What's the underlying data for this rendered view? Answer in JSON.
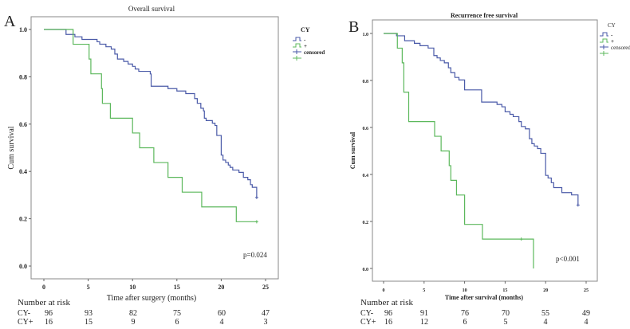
{
  "chart_data": [
    {
      "type": "line",
      "panel_label": "A",
      "title": "Overall survival",
      "xlabel": "Time after surgery (months)",
      "ylabel": "Cum survival",
      "xlim": [
        0,
        25
      ],
      "ylim": [
        0,
        1
      ],
      "xticks": [
        "0",
        "5",
        "10",
        "15",
        "20",
        "25"
      ],
      "yticks": [
        "0.0",
        "0.2",
        "0.4",
        "0.6",
        "0.8",
        "1.0"
      ],
      "legend": {
        "title": "CY",
        "entries": [
          "-",
          "+",
          "censored"
        ],
        "placement": "right"
      },
      "annotation": "p=0.024",
      "series": [
        {
          "name": "-",
          "color": "#4a5aa8",
          "steps": [
            [
              0,
              1
            ],
            [
              2.5,
              0.979
            ],
            [
              3.5,
              0.969
            ],
            [
              4.3,
              0.958
            ],
            [
              6,
              0.948
            ],
            [
              6.3,
              0.938
            ],
            [
              7,
              0.927
            ],
            [
              7.6,
              0.917
            ],
            [
              8,
              0.896
            ],
            [
              8.3,
              0.875
            ],
            [
              9,
              0.865
            ],
            [
              9.5,
              0.854
            ],
            [
              10,
              0.844
            ],
            [
              10.3,
              0.833
            ],
            [
              10.7,
              0.823
            ],
            [
              12,
              0.812
            ],
            [
              12.1,
              0.76
            ],
            [
              14,
              0.75
            ],
            [
              15,
              0.74
            ],
            [
              16,
              0.729
            ],
            [
              17,
              0.708
            ],
            [
              17.3,
              0.688
            ],
            [
              17.7,
              0.667
            ],
            [
              18,
              0.656
            ],
            [
              18.1,
              0.625
            ],
            [
              18.3,
              0.615
            ],
            [
              19,
              0.604
            ],
            [
              19.3,
              0.594
            ],
            [
              19.5,
              0.552
            ],
            [
              20,
              0.469
            ],
            [
              20.2,
              0.448
            ],
            [
              20.5,
              0.438
            ],
            [
              20.8,
              0.427
            ],
            [
              21,
              0.417
            ],
            [
              21.3,
              0.406
            ],
            [
              22,
              0.396
            ],
            [
              22.5,
              0.375
            ],
            [
              23,
              0.365
            ],
            [
              23.3,
              0.344
            ],
            [
              23.5,
              0.333
            ],
            [
              24,
              0.29
            ]
          ],
          "censored": [
            [
              24,
              0.29
            ]
          ]
        },
        {
          "name": "+",
          "color": "#5cb85c",
          "steps": [
            [
              0,
              1
            ],
            [
              3.3,
              0.9375
            ],
            [
              5.1,
              0.875
            ],
            [
              5.3,
              0.8125
            ],
            [
              6.5,
              0.75
            ],
            [
              6.6,
              0.6875
            ],
            [
              7.5,
              0.625
            ],
            [
              10,
              0.5625
            ],
            [
              10.8,
              0.5
            ],
            [
              12.4,
              0.4375
            ],
            [
              14,
              0.375
            ],
            [
              15.6,
              0.3125
            ],
            [
              17.8,
              0.25
            ],
            [
              21.7,
              0.1875
            ],
            [
              24,
              0.1875
            ]
          ],
          "censored": [
            [
              24,
              0.1875
            ]
          ]
        }
      ],
      "risk_table": {
        "title": "Number at risk",
        "rows": [
          {
            "label": "CY-",
            "values": [
              "96",
              "93",
              "82",
              "75",
              "60",
              "47"
            ]
          },
          {
            "label": "CY+",
            "values": [
              "16",
              "15",
              "9",
              "6",
              "4",
              "3"
            ]
          }
        ]
      }
    },
    {
      "type": "line",
      "panel_label": "B",
      "title": "Recurrence free survival",
      "xlabel": "Time after survival (months)",
      "ylabel": "Cum survival",
      "xlim": [
        0,
        25
      ],
      "ylim": [
        0,
        1
      ],
      "xticks": [
        "0",
        "5",
        "10",
        "15",
        "20",
        "25"
      ],
      "yticks": [
        "0.0",
        "0.2",
        "0.4",
        "0.6",
        "0.8",
        "1.0"
      ],
      "legend": {
        "title": "CY",
        "entries": [
          "-",
          "+",
          "censored"
        ],
        "placement": "right"
      },
      "annotation": "p<0.001",
      "series": [
        {
          "name": "-",
          "color": "#4a5aa8",
          "steps": [
            [
              0,
              1
            ],
            [
              1.6,
              0.99
            ],
            [
              2.6,
              0.969
            ],
            [
              3.8,
              0.958
            ],
            [
              4.5,
              0.948
            ],
            [
              5.5,
              0.938
            ],
            [
              6.2,
              0.906
            ],
            [
              6.6,
              0.896
            ],
            [
              7,
              0.885
            ],
            [
              7.5,
              0.875
            ],
            [
              8,
              0.854
            ],
            [
              8.3,
              0.833
            ],
            [
              8.8,
              0.813
            ],
            [
              9.3,
              0.802
            ],
            [
              10,
              0.76
            ],
            [
              12.1,
              0.708
            ],
            [
              14,
              0.698
            ],
            [
              14.6,
              0.688
            ],
            [
              15,
              0.667
            ],
            [
              15.6,
              0.656
            ],
            [
              16,
              0.646
            ],
            [
              16.7,
              0.625
            ],
            [
              17,
              0.604
            ],
            [
              17.5,
              0.594
            ],
            [
              18,
              0.552
            ],
            [
              18.3,
              0.531
            ],
            [
              18.6,
              0.521
            ],
            [
              19,
              0.51
            ],
            [
              19.4,
              0.49
            ],
            [
              20,
              0.396
            ],
            [
              20.3,
              0.385
            ],
            [
              20.7,
              0.365
            ],
            [
              21,
              0.344
            ],
            [
              22,
              0.323
            ],
            [
              23.2,
              0.313
            ],
            [
              24,
              0.27
            ]
          ],
          "censored": [
            [
              24,
              0.27
            ]
          ]
        },
        {
          "name": "+",
          "color": "#5cb85c",
          "steps": [
            [
              0,
              1
            ],
            [
              1.7,
              0.9375
            ],
            [
              2.3,
              0.875
            ],
            [
              2.5,
              0.75
            ],
            [
              3.1,
              0.625
            ],
            [
              6.3,
              0.5625
            ],
            [
              7.1,
              0.5
            ],
            [
              8.1,
              0.4375
            ],
            [
              8.3,
              0.375
            ],
            [
              9,
              0.3125
            ],
            [
              10,
              0.1875
            ],
            [
              12.2,
              0.125
            ],
            [
              18.5,
              0.0
            ]
          ],
          "censored": [
            [
              17,
              0.125
            ]
          ]
        }
      ],
      "risk_table": {
        "title": "Number at risk",
        "rows": [
          {
            "label": "CY-",
            "values": [
              "96",
              "91",
              "76",
              "70",
              "55",
              "49"
            ]
          },
          {
            "label": "CY+",
            "values": [
              "16",
              "12",
              "6",
              "5",
              "4",
              "4"
            ]
          }
        ]
      }
    }
  ]
}
